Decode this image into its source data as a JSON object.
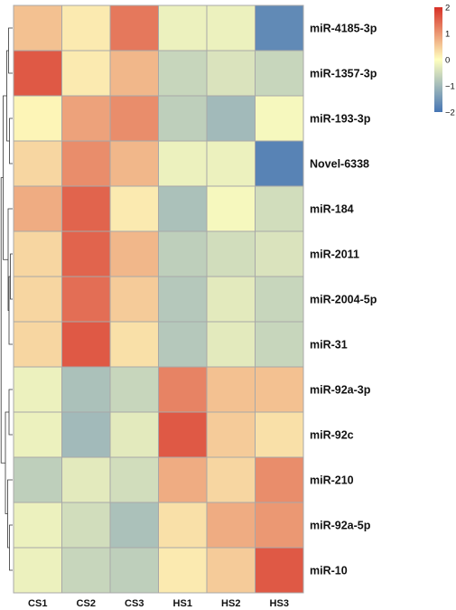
{
  "chart_data": {
    "type": "heatmap",
    "columns": [
      "CS1",
      "CS2",
      "CS3",
      "HS1",
      "HS2",
      "HS3"
    ],
    "rows": [
      "miR-4185-3p",
      "miR-1357-3p",
      "miR-193-3p",
      "Novel-6338",
      "miR-184",
      "miR-2011",
      "miR-2004-5p",
      "miR-31",
      "miR-92a-3p",
      "miR-92c",
      "miR-210",
      "miR-92a-5p",
      "miR-10"
    ],
    "values": [
      [
        0.6,
        0.2,
        1.3,
        -0.2,
        -0.2,
        -1.7
      ],
      [
        1.6,
        0.2,
        0.7,
        -0.6,
        -0.4,
        -0.6
      ],
      [
        0.1,
        0.9,
        1.1,
        -0.7,
        -1.0,
        -0.1
      ],
      [
        0.4,
        1.1,
        0.7,
        -0.2,
        -0.2,
        -1.8
      ],
      [
        0.8,
        1.5,
        0.2,
        -0.9,
        -0.1,
        -0.5
      ],
      [
        0.4,
        1.5,
        0.7,
        -0.7,
        -0.5,
        -0.4
      ],
      [
        0.4,
        1.4,
        0.5,
        -0.8,
        -0.3,
        -0.6
      ],
      [
        0.4,
        1.6,
        0.3,
        -0.8,
        -0.3,
        -0.6
      ],
      [
        -0.2,
        -0.9,
        -0.6,
        1.2,
        0.6,
        0.6
      ],
      [
        -0.2,
        -1.0,
        -0.3,
        1.6,
        0.5,
        0.3
      ],
      [
        -0.7,
        -0.3,
        -0.5,
        0.8,
        0.4,
        1.1
      ],
      [
        -0.2,
        -0.5,
        -0.9,
        0.3,
        0.8,
        1.0
      ],
      [
        -0.2,
        -0.6,
        -0.7,
        0.2,
        0.5,
        1.6
      ]
    ],
    "color_scale": {
      "min": -2,
      "max": 2,
      "ticks": [
        2,
        1,
        0,
        -1,
        -2
      ],
      "tick_labels": [
        "2",
        "1",
        "0",
        "−1",
        "−2"
      ],
      "low_color": "#4575b4",
      "mid_color": "#ffffbf",
      "high_color": "#d73027"
    },
    "legend_position": "top-right",
    "row_dendrogram": "left",
    "cell_borders": "#a8a8a8"
  }
}
